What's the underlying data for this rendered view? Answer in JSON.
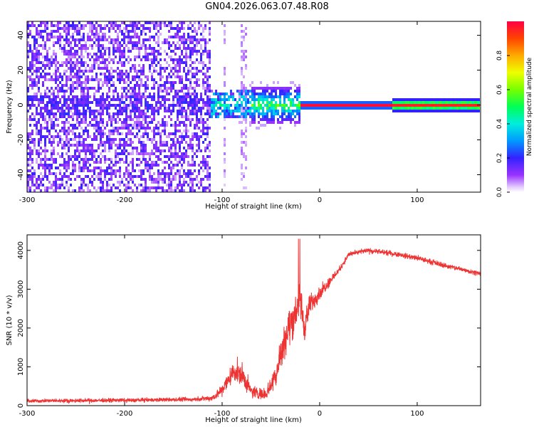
{
  "title": "GN04.2026.063.07.48.R08",
  "colors": {
    "snr_line": "#ee3333",
    "frame": "#000000",
    "background": "#ffffff"
  },
  "chart_data": [
    {
      "type": "heatmap",
      "title": "GN04.2026.063.07.48.R08",
      "xlabel": "Height of straight line (km)",
      "ylabel": "Frequency (Hz)",
      "xlim": [
        -300,
        165
      ],
      "ylim": [
        -50,
        48
      ],
      "xticks": [
        -300,
        -200,
        -100,
        0,
        100
      ],
      "yticks": [
        -40,
        -20,
        0,
        20,
        40
      ],
      "grid": false,
      "colorbar": {
        "label": "Normalized spectral amplitude",
        "range": [
          0.0,
          1.0
        ],
        "ticks": [
          "0.0",
          "0.2",
          "0.4",
          "0.6",
          "0.8"
        ],
        "colormap": "rainbow (white-lavender at 0, violet, blue, cyan, green, yellow, orange, red at 1)"
      },
      "regions": [
        {
          "x_range": [
            -300,
            -112
          ],
          "description": "diffuse scattered violet noise spanning -50..48 Hz",
          "amplitude": 0.15
        },
        {
          "x_range": [
            -112,
            -70
          ],
          "description": "narrow noise band near 0 Hz plus faint vertical streaks",
          "amplitude": 0.3
        },
        {
          "x_range": [
            -70,
            -20
          ],
          "description": "blue-green blobs near 0 Hz",
          "amplitude": 0.45
        },
        {
          "x_range": [
            -20,
            75
          ],
          "description": "sharp red line at 0 Hz",
          "amplitude": 1.0
        },
        {
          "x_range": [
            75,
            165
          ],
          "description": "thin red line at 0 Hz with green-cyan halo",
          "amplitude": 0.9
        }
      ]
    },
    {
      "type": "line",
      "xlabel": "Height of straight line (km)",
      "ylabel": "SNR (10 * v/v)",
      "xlim": [
        -300,
        165
      ],
      "ylim": [
        0,
        4400
      ],
      "xticks": [
        -300,
        -200,
        -100,
        0,
        100
      ],
      "yticks": [
        0,
        1000,
        2000,
        3000,
        4000
      ],
      "grid": false,
      "series": [
        {
          "color": "#ee3333",
          "envelope": [
            {
              "x": -300,
              "y": 120,
              "noise": 140
            },
            {
              "x": -200,
              "y": 140,
              "noise": 150
            },
            {
              "x": -130,
              "y": 160,
              "noise": 170
            },
            {
              "x": -110,
              "y": 200,
              "noise": 220
            },
            {
              "x": -100,
              "y": 400,
              "noise": 500
            },
            {
              "x": -88,
              "y": 900,
              "noise": 800
            },
            {
              "x": -80,
              "y": 800,
              "noise": 900
            },
            {
              "x": -70,
              "y": 350,
              "noise": 450
            },
            {
              "x": -55,
              "y": 300,
              "noise": 400
            },
            {
              "x": -45,
              "y": 800,
              "noise": 1000
            },
            {
              "x": -35,
              "y": 1800,
              "noise": 1400
            },
            {
              "x": -25,
              "y": 2400,
              "noise": 1500
            },
            {
              "x": -20,
              "y": 2800,
              "noise": 1500
            },
            {
              "x": -16,
              "y": 2000,
              "noise": 1200
            },
            {
              "x": -10,
              "y": 2600,
              "noise": 800
            },
            {
              "x": 0,
              "y": 2900,
              "noise": 500
            },
            {
              "x": 20,
              "y": 3500,
              "noise": 250
            },
            {
              "x": 30,
              "y": 3900,
              "noise": 200
            },
            {
              "x": 50,
              "y": 4000,
              "noise": 180
            },
            {
              "x": 80,
              "y": 3900,
              "noise": 200
            },
            {
              "x": 100,
              "y": 3800,
              "noise": 220
            },
            {
              "x": 130,
              "y": 3600,
              "noise": 200
            },
            {
              "x": 165,
              "y": 3400,
              "noise": 180
            }
          ]
        }
      ]
    }
  ]
}
